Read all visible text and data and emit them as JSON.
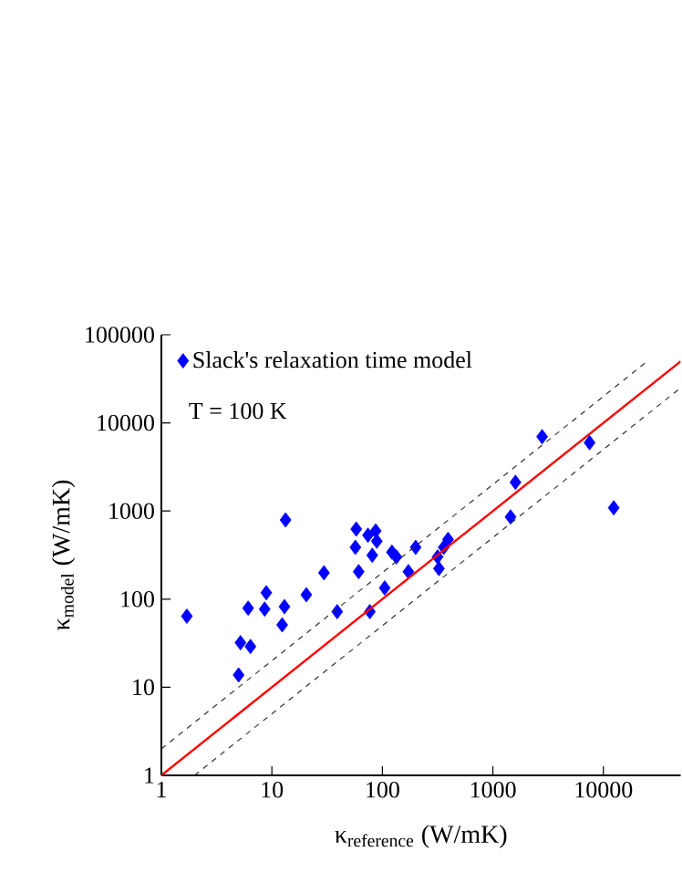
{
  "chart_data": {
    "type": "scatter",
    "xlabel": "\\text{κ}_{\\text{reference}}\\text{ (W/mK)}",
    "ylabel": "\\text{κ}_{\\text{model}}\\text{ (W/mK)}",
    "log": "xy",
    "xlim": [
      1,
      50000
    ],
    "ylim": [
      1,
      100000
    ],
    "xticks": [
      1,
      10,
      100,
      1000,
      10000
    ],
    "yticks": [
      1,
      10,
      100,
      1000,
      10000,
      100000
    ],
    "grid": false,
    "legend": "top left",
    "marker": "diamond",
    "annotations": [
      "T = 100 K"
    ],
    "series": [
      {
        "name": "Slack's relaxation time model",
        "color": "#0000ff",
        "x": [
          1.7,
          5.0,
          5.2,
          6.4,
          6.1,
          8.6,
          8.9,
          12.4,
          13,
          13.3,
          20.5,
          29.6,
          39,
          58,
          57,
          61,
          77,
          87,
          89,
          81,
          105,
          122,
          134,
          172,
          200,
          316,
          325,
          359,
          393,
          1445,
          1600,
          2790,
          7500,
          12400,
          74
        ],
        "values": [
          64,
          13.8,
          32,
          29,
          79,
          77,
          118,
          51,
          82,
          792,
          112,
          199,
          72,
          624,
          387,
          205,
          72,
          594,
          454,
          315,
          134,
          341,
          301,
          205,
          387,
          301,
          222,
          387,
          476,
          857,
          2120,
          6980,
          5960,
          1088,
          532
        ]
      },
      {
        "type": "line",
        "color": "#ff0000",
        "marker": "none",
        "line_style": "solid",
        "x": [
          1,
          50000
        ],
        "values": [
          1,
          50000
        ]
      },
      {
        "type": "line",
        "color": "#333333",
        "marker": "none",
        "line_style": "dashed",
        "x": [
          1,
          25000
        ],
        "values": [
          2,
          50000
        ]
      },
      {
        "type": "line",
        "color": "#333333",
        "marker": "none",
        "line_style": "dashed",
        "x": [
          2,
          50000
        ],
        "values": [
          1,
          25000
        ]
      }
    ]
  }
}
